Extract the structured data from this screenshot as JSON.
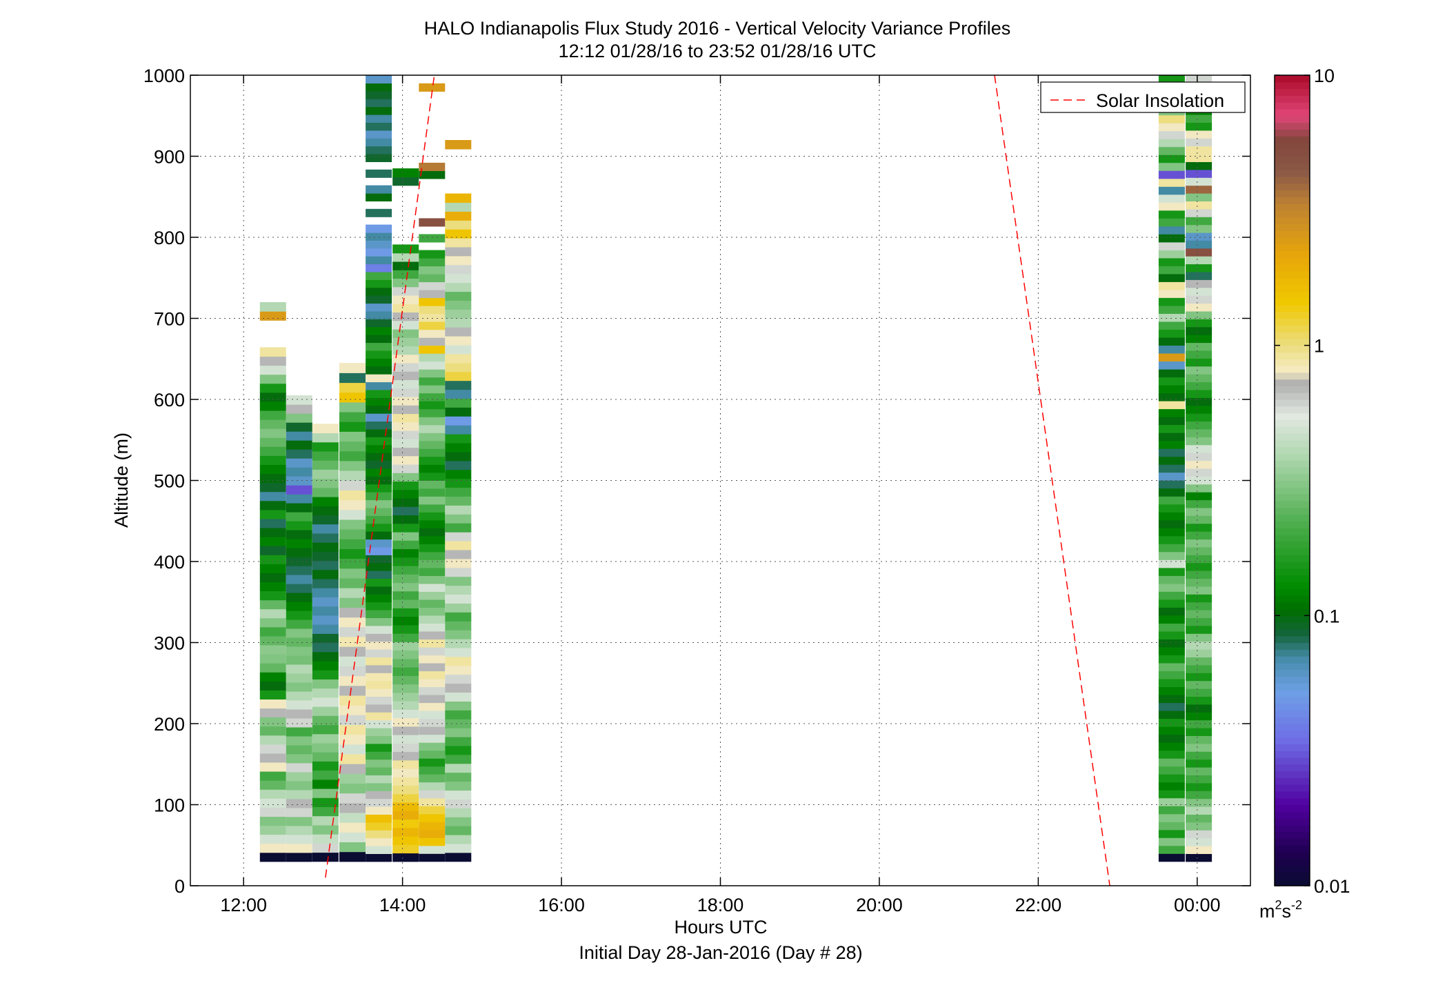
{
  "chart_data": {
    "type": "heatmap",
    "title": "HALO Indianapolis Flux Study 2016 - Vertical Velocity Variance Profiles",
    "subtitle": "12:12 01/28/16 to 23:52 01/28/16  UTC",
    "xlabel": "Hours UTC",
    "xlabel2": "Initial Day 28-Jan-2016 (Day # 28)",
    "ylabel": "Altitude (m)",
    "xlim": [
      11.33,
      24.67
    ],
    "ylim": [
      0,
      1000
    ],
    "x_ticks": [
      12,
      14,
      16,
      18,
      20,
      22,
      24
    ],
    "x_tick_labels": [
      "12:00",
      "14:00",
      "16:00",
      "18:00",
      "20:00",
      "22:00",
      "00:00"
    ],
    "y_ticks": [
      0,
      100,
      200,
      300,
      400,
      500,
      600,
      700,
      800,
      900,
      1000
    ],
    "y_tick_labels": [
      "0",
      "100",
      "200",
      "300",
      "400",
      "500",
      "600",
      "700",
      "800",
      "900",
      "1000"
    ],
    "grid": true,
    "colorbar": {
      "scale": "log",
      "range": [
        0.01,
        10
      ],
      "ticks": [
        0.01,
        0.1,
        1,
        10
      ],
      "tick_labels": [
        "0.01",
        "0.1",
        "1",
        "10"
      ],
      "units_base": "m",
      "units_sup1": "2",
      "units_mid": "s",
      "units_sup2": "-2"
    },
    "legend": {
      "position": "top-right",
      "entries": [
        "Solar Insolation"
      ]
    },
    "series": [
      {
        "name": "Solar Insolation",
        "style": "red-dashed",
        "color": "#ff0000",
        "segments": [
          [
            [
              13.03,
              10
            ],
            [
              14.4,
              1000
            ]
          ],
          [
            [
              21.45,
              1000
            ],
            [
              22.9,
              0
            ]
          ]
        ]
      }
    ],
    "profiles": [
      {
        "time": 12.37,
        "width_hours": 0.33,
        "z_top": 720,
        "values": [
          0.01,
          0.8,
          0.5,
          0.35,
          0.3,
          0.6,
          0.5,
          0.4,
          0.25,
          0.2,
          0.8,
          0.7,
          0.6,
          0.4,
          0.25,
          0.3,
          0.7,
          0.8,
          0.15,
          0.1,
          0.12,
          0.25,
          0.3,
          0.32,
          0.25,
          0.2,
          0.3,
          0.4,
          0.25,
          0.15,
          0.12,
          0.1,
          0.12,
          0.15,
          0.09,
          0.12,
          0.1,
          0.08,
          0.15,
          0.1,
          0.07,
          0.09,
          0.1,
          0.12,
          0.15,
          0.2,
          0.25,
          0.3,
          0.25,
          0.2,
          0.12,
          0.1,
          0.15,
          0.3,
          0.5,
          0.7,
          0.9,
          null,
          null,
          null,
          2.5,
          0.4
        ]
      },
      {
        "time": 12.7,
        "width_hours": 0.33,
        "z_top": 605,
        "values": [
          0.01,
          0.8,
          0.5,
          0.4,
          0.3,
          0.6,
          0.7,
          0.4,
          0.3,
          0.35,
          0.6,
          0.3,
          0.25,
          0.3,
          0.2,
          0.6,
          0.7,
          0.5,
          0.4,
          0.3,
          0.35,
          0.4,
          0.28,
          0.3,
          0.25,
          0.3,
          0.2,
          0.15,
          0.12,
          0.1,
          0.08,
          0.07,
          0.08,
          0.09,
          0.1,
          0.12,
          0.1,
          0.15,
          0.2,
          0.1,
          0.07,
          0.03,
          0.06,
          0.07,
          0.06,
          0.08,
          0.1,
          0.07,
          0.09,
          0.3,
          0.7,
          0.5
        ]
      },
      {
        "time": 13.03,
        "width_hours": 0.33,
        "z_top": 570,
        "values": [
          0.01,
          0.6,
          0.45,
          0.3,
          0.4,
          0.2,
          0.15,
          0.3,
          0.12,
          0.2,
          0.15,
          0.25,
          0.3,
          0.35,
          0.2,
          0.25,
          0.35,
          0.5,
          0.4,
          0.3,
          0.15,
          0.12,
          0.1,
          0.08,
          0.09,
          0.07,
          0.06,
          0.07,
          0.06,
          0.07,
          0.08,
          0.1,
          0.08,
          0.09,
          0.1,
          0.08,
          0.07,
          0.09,
          0.1,
          0.12,
          0.25,
          0.3,
          0.35,
          0.25,
          0.2,
          0.15,
          0.4,
          0.8
        ]
      },
      {
        "time": 13.37,
        "width_hours": 0.33,
        "z_top": 645,
        "values": [
          0.01,
          0.3,
          0.5,
          0.8,
          0.45,
          0.7,
          0.6,
          0.3,
          0.35,
          0.7,
          0.9,
          0.5,
          0.8,
          0.9,
          0.6,
          0.8,
          0.9,
          0.7,
          0.8,
          0.6,
          0.5,
          0.7,
          0.85,
          0.6,
          0.8,
          0.7,
          0.3,
          0.4,
          0.25,
          0.3,
          0.2,
          0.15,
          0.2,
          0.25,
          0.3,
          0.5,
          0.8,
          0.9,
          0.6,
          0.4,
          0.3,
          0.2,
          0.25,
          0.3,
          0.15,
          0.2,
          0.3,
          1.5,
          1.2,
          0.08,
          0.8
        ]
      },
      {
        "time": 13.7,
        "width_hours": 0.33,
        "z_top": 1000,
        "values": [
          0.01,
          0.5,
          0.8,
          1.0,
          1.3,
          1.6,
          0.8,
          0.6,
          0.7,
          0.3,
          0.4,
          0.25,
          0.3,
          0.2,
          0.15,
          0.3,
          0.35,
          0.5,
          0.9,
          0.7,
          0.6,
          0.8,
          0.9,
          0.85,
          0.7,
          0.9,
          0.6,
          0.8,
          0.7,
          0.5,
          0.3,
          0.2,
          0.15,
          0.12,
          0.1,
          0.15,
          0.08,
          0.1,
          0.09,
          0.05,
          0.06,
          0.1,
          0.15,
          0.2,
          0.25,
          0.3,
          0.2,
          0.15,
          0.1,
          0.12,
          0.09,
          0.1,
          0.12,
          0.15,
          0.1,
          0.08,
          0.06,
          0.1,
          0.12,
          0.15,
          0.07,
          0.8,
          0.1,
          0.12,
          0.15,
          0.2,
          0.1,
          0.12,
          0.09,
          0.07,
          0.06,
          0.09,
          0.1,
          0.15,
          0.2,
          0.04,
          0.07,
          0.05,
          0.06,
          0.07,
          0.05,
          null,
          0.08,
          null,
          0.1,
          0.07,
          null,
          0.08,
          null,
          0.09,
          0.08,
          0.07,
          0.06,
          0.08,
          0.07,
          0.1,
          0.08,
          0.09,
          0.1,
          0.06
        ]
      },
      {
        "time": 14.04,
        "width_hours": 0.33,
        "z_top": 885,
        "values": [
          0.01,
          1.3,
          1.5,
          1.8,
          1.4,
          2.0,
          1.7,
          1.2,
          1.0,
          0.9,
          0.8,
          0.9,
          0.7,
          0.6,
          0.5,
          0.7,
          0.8,
          0.5,
          0.4,
          0.35,
          0.3,
          0.25,
          0.2,
          0.25,
          0.3,
          0.35,
          0.2,
          0.15,
          0.12,
          0.15,
          0.25,
          0.2,
          0.3,
          0.25,
          0.2,
          0.15,
          0.12,
          0.2,
          0.3,
          0.15,
          0.1,
          0.08,
          0.1,
          0.12,
          0.15,
          0.3,
          0.6,
          0.8,
          0.7,
          0.5,
          0.6,
          0.8,
          0.9,
          0.7,
          0.8,
          0.6,
          0.5,
          0.7,
          0.6,
          0.8,
          0.4,
          0.35,
          0.3,
          0.5,
          0.7,
          0.9,
          0.8,
          0.6,
          0.3,
          0.2,
          0.1,
          0.4,
          0.15,
          null,
          null,
          null,
          null,
          null,
          null,
          null,
          0.09,
          0.12
        ]
      },
      {
        "time": 14.37,
        "width_hours": 0.33,
        "z_top": 990,
        "values": [
          0.01,
          0.5,
          1.5,
          2.0,
          1.8,
          1.5,
          1.2,
          0.9,
          0.6,
          0.4,
          0.25,
          0.2,
          0.15,
          0.25,
          0.3,
          0.5,
          0.7,
          0.6,
          0.5,
          0.8,
          0.7,
          0.6,
          0.8,
          0.9,
          0.7,
          0.8,
          0.6,
          0.9,
          0.7,
          0.5,
          0.4,
          0.3,
          0.25,
          0.35,
          0.5,
          0.3,
          0.2,
          0.25,
          0.2,
          0.15,
          0.12,
          0.1,
          0.12,
          0.15,
          0.2,
          0.3,
          0.2,
          0.25,
          0.15,
          0.12,
          0.15,
          0.2,
          0.25,
          0.3,
          0.4,
          0.3,
          0.2,
          0.15,
          0.2,
          0.3,
          0.2,
          0.3,
          0.5,
          0.4,
          1.5,
          0.7,
          0.8,
          1.2,
          0.9,
          1.0,
          1.5,
          0.7,
          0.6,
          0.25,
          0.3,
          0.2,
          0.15,
          null,
          0.2,
          null,
          5.0,
          null,
          null,
          null,
          null,
          null,
          0.1,
          3.5,
          null,
          null,
          null,
          null,
          null,
          null,
          null,
          null,
          null,
          2.5
        ]
      },
      {
        "time": 14.7,
        "width_hours": 0.33,
        "z_top": 920,
        "values": [
          0.01,
          0.5,
          0.4,
          0.25,
          0.3,
          0.4,
          0.6,
          0.5,
          0.3,
          0.25,
          0.4,
          0.2,
          0.15,
          0.2,
          0.3,
          0.25,
          0.2,
          0.3,
          0.5,
          0.7,
          0.6,
          0.8,
          0.9,
          0.5,
          0.4,
          0.3,
          0.25,
          0.2,
          0.35,
          0.5,
          0.4,
          0.3,
          0.6,
          0.8,
          0.7,
          0.9,
          0.6,
          0.2,
          0.3,
          0.4,
          0.25,
          0.2,
          0.15,
          0.12,
          0.08,
          0.1,
          0.12,
          0.15,
          0.07,
          0.05,
          0.1,
          0.2,
          0.07,
          0.08,
          1.2,
          1.0,
          0.9,
          0.5,
          0.8,
          0.7,
          0.4,
          0.35,
          0.3,
          0.25,
          0.4,
          0.5,
          0.6,
          0.8,
          0.7,
          0.9,
          1.5,
          1.0,
          2.0,
          0.4,
          1.8,
          null,
          null,
          null,
          null,
          null,
          2.5
        ]
      },
      {
        "time": 23.68,
        "width_hours": 0.33,
        "z_top": 1000,
        "values": [
          0.01,
          0.2,
          0.3,
          0.15,
          0.25,
          0.3,
          0.2,
          0.35,
          0.15,
          0.12,
          0.15,
          0.2,
          0.25,
          0.15,
          0.12,
          0.1,
          0.12,
          0.15,
          0.1,
          0.08,
          0.1,
          0.12,
          0.15,
          0.2,
          0.25,
          0.15,
          0.12,
          0.1,
          0.15,
          0.2,
          0.12,
          0.1,
          0.15,
          0.2,
          0.3,
          0.25,
          0.15,
          0.5,
          0.3,
          0.2,
          0.15,
          0.12,
          0.1,
          0.12,
          0.15,
          0.2,
          0.1,
          0.08,
          0.06,
          0.08,
          0.1,
          0.08,
          0.12,
          0.1,
          0.15,
          0.1,
          0.12,
          0.9,
          0.1,
          0.12,
          0.15,
          0.1,
          0.06,
          2.5,
          0.07,
          0.1,
          0.15,
          0.2,
          0.4,
          0.2,
          0.15,
          0.8,
          0.9,
          0.1,
          0.2,
          0.15,
          0.35,
          0.6,
          0.1,
          0.07,
          0.2,
          0.15,
          0.8,
          0.5,
          0.07,
          0.9,
          0.03,
          0.3,
          0.15,
          0.25,
          0.4,
          0.6,
          0.8,
          1.0,
          0.3,
          0.15,
          0.25,
          0.2,
          0.15
        ]
      },
      {
        "time": 24.02,
        "width_hours": 0.33,
        "z_top": 1000,
        "values": [
          0.01,
          0.8,
          0.5,
          0.6,
          0.3,
          0.25,
          0.4,
          0.3,
          0.2,
          0.15,
          0.2,
          0.25,
          0.15,
          0.2,
          0.3,
          0.25,
          0.15,
          0.2,
          0.12,
          0.1,
          0.15,
          0.2,
          0.25,
          0.15,
          0.2,
          0.25,
          0.35,
          0.4,
          0.3,
          0.15,
          0.2,
          0.25,
          0.2,
          0.15,
          0.3,
          0.25,
          0.2,
          0.15,
          0.2,
          0.25,
          0.3,
          0.2,
          0.15,
          0.25,
          0.3,
          0.2,
          0.12,
          0.3,
          0.5,
          0.6,
          0.8,
          0.6,
          0.5,
          0.3,
          0.25,
          0.2,
          0.15,
          0.12,
          0.1,
          0.15,
          0.2,
          0.25,
          0.3,
          0.15,
          0.2,
          0.25,
          0.12,
          0.1,
          0.15,
          0.3,
          0.8,
          0.6,
          0.5,
          0.7,
          0.08,
          0.15,
          0.4,
          5.0,
          0.07,
          0.06,
          0.3,
          0.2,
          0.6,
          0.9,
          0.3,
          4.0,
          0.5,
          0.03,
          0.1,
          0.9,
          0.9,
          0.6,
          0.8,
          0.15,
          0.2,
          0.12,
          0.5,
          0.9,
          0.3,
          0.6
        ]
      }
    ]
  }
}
